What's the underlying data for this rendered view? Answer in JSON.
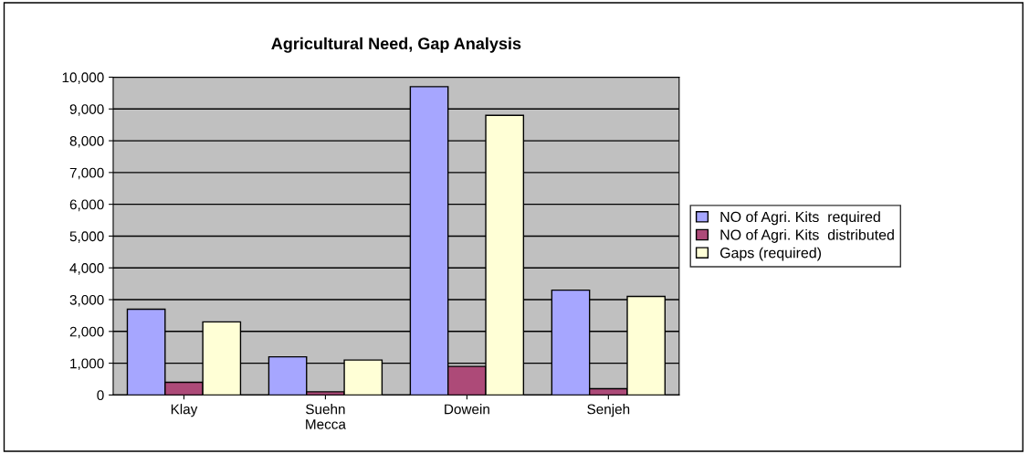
{
  "chart_data": {
    "type": "bar",
    "title": "Agricultural Need, Gap Analysis",
    "categories": [
      "Klay",
      "Suehn\nMecca",
      "Dowein",
      "Senjeh"
    ],
    "series": [
      {
        "name": "NO of Agri. Kits  required",
        "color": "#a6a6ff",
        "values": [
          2700,
          1200,
          9700,
          3300
        ]
      },
      {
        "name": "NO of Agri. Kits  distributed",
        "color": "#ad4a78",
        "values": [
          400,
          100,
          900,
          200
        ]
      },
      {
        "name": "Gaps (required)",
        "color": "#ffffd6",
        "values": [
          2300,
          1100,
          8800,
          3100
        ]
      }
    ],
    "ylim": [
      0,
      10000
    ],
    "yticks": [
      {
        "value": 0,
        "label": "0"
      },
      {
        "value": 1000,
        "label": "1,000"
      },
      {
        "value": 2000,
        "label": "2,000"
      },
      {
        "value": 3000,
        "label": "3,000"
      },
      {
        "value": 4000,
        "label": "4,000"
      },
      {
        "value": 5000,
        "label": "5,000"
      },
      {
        "value": 6000,
        "label": "6,000"
      },
      {
        "value": 7000,
        "label": "7,000"
      },
      {
        "value": 8000,
        "label": "8,000"
      },
      {
        "value": 9000,
        "label": "9,000"
      },
      {
        "value": 10000,
        "label": "10,000"
      }
    ],
    "grid": "y",
    "legend": "right"
  }
}
